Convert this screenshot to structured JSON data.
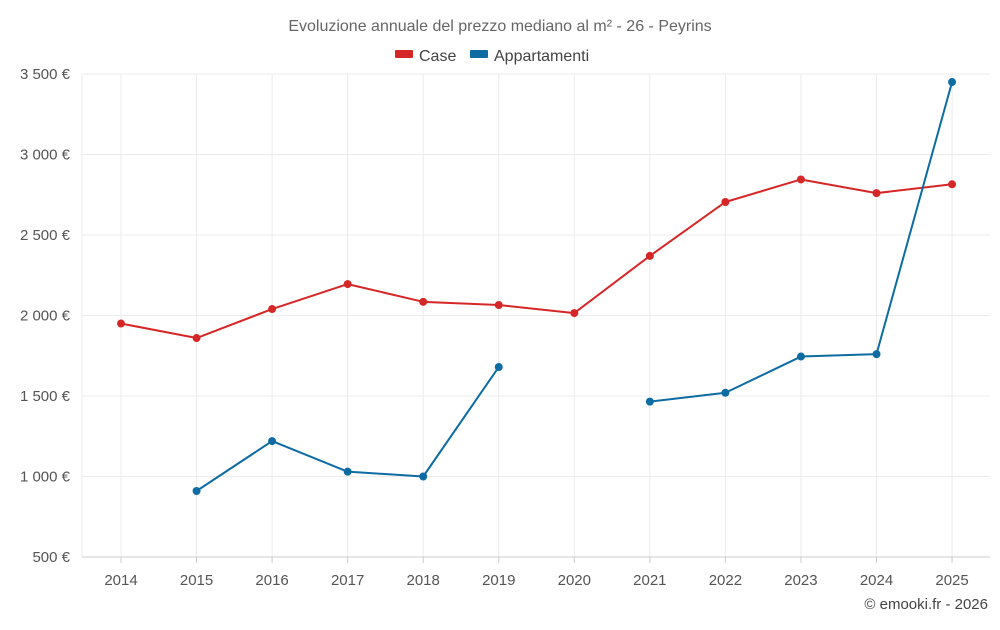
{
  "chart_data": {
    "type": "line",
    "title": "Evoluzione annuale del prezzo mediano al m² - 26 - Peyrins",
    "xlabel": "",
    "ylabel": "",
    "categories": [
      "2014",
      "2015",
      "2016",
      "2017",
      "2018",
      "2019",
      "2020",
      "2021",
      "2022",
      "2023",
      "2024",
      "2025"
    ],
    "series": [
      {
        "name": "Case",
        "color": "#d62728",
        "values": [
          1950,
          1860,
          2040,
          2195,
          2085,
          2065,
          2015,
          2370,
          2705,
          2845,
          2760,
          2815
        ]
      },
      {
        "name": "Appartamenti",
        "color": "#0f6ca3",
        "values": [
          null,
          910,
          1220,
          1030,
          1000,
          1680,
          null,
          1465,
          1520,
          1745,
          1760,
          3450
        ]
      }
    ],
    "ylim": [
      500,
      3500
    ],
    "yticks": [
      500,
      1000,
      1500,
      2000,
      2500,
      3000,
      3500
    ],
    "ytick_labels": [
      "500 €",
      "1 000 €",
      "1 500 €",
      "2 000 €",
      "2 500 €",
      "3 000 €",
      "3 500 €"
    ],
    "grid": true,
    "legend_position": "top-center"
  },
  "credit": "© emooki.fr - 2026"
}
